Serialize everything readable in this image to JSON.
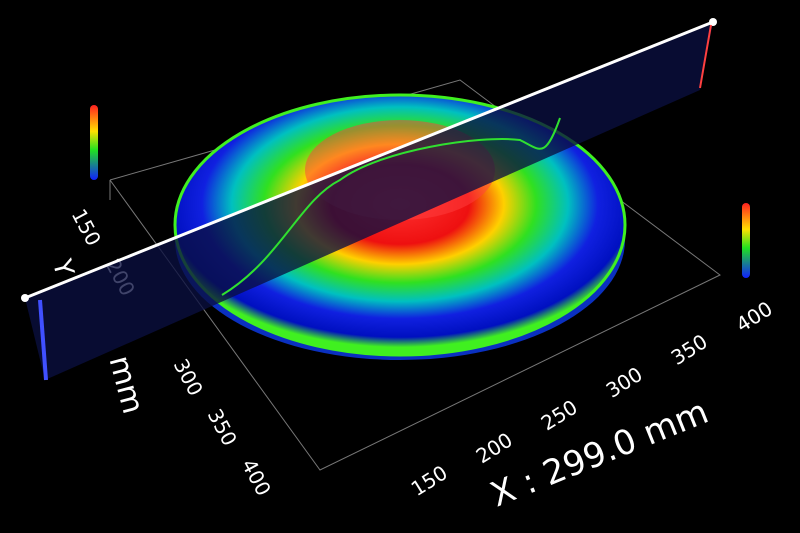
{
  "x_axis": {
    "label": "X : 299.0 mm",
    "ticks": [
      150,
      200,
      250,
      300,
      350,
      400
    ]
  },
  "y_axis": {
    "letter": "Y",
    "unit": "mm",
    "ticks": [
      150,
      200,
      300,
      350,
      400
    ]
  }
}
